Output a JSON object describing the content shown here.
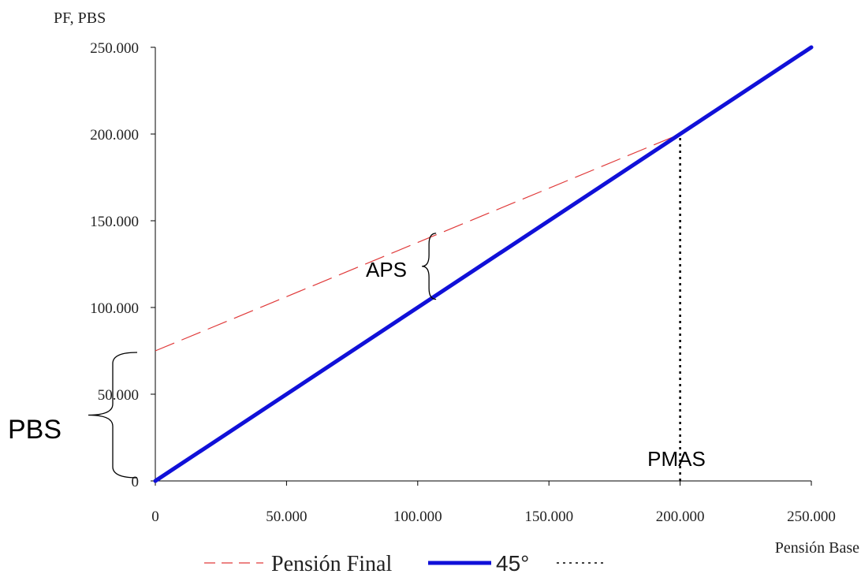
{
  "chart_data": {
    "type": "line",
    "ylabel": "PF, PBS",
    "xlabel": "Pensión Base",
    "xlim": [
      0,
      250000
    ],
    "ylim": [
      0,
      250000
    ],
    "x_ticks": [
      0,
      50000,
      100000,
      150000,
      200000,
      250000
    ],
    "y_ticks": [
      0,
      50000,
      100000,
      150000,
      200000,
      250000
    ],
    "x_tick_labels": [
      "0",
      "50.000",
      "100.000",
      "150.000",
      "200.000",
      "250.000"
    ],
    "y_tick_labels": [
      "0",
      "50.000",
      "100.000",
      "150.000",
      "200.000",
      "250.000"
    ],
    "grid": false,
    "series": [
      {
        "name": "Pensión Final",
        "color": "#e03a3a",
        "style": "dashed",
        "points": [
          [
            0,
            75000
          ],
          [
            200000,
            200000
          ]
        ]
      },
      {
        "name": "45°",
        "color": "#1010d8",
        "style": "solid-thick",
        "points": [
          [
            0,
            0
          ],
          [
            250000,
            250000
          ]
        ]
      },
      {
        "name": "",
        "color": "#000000",
        "style": "dotted",
        "points": [
          [
            200000,
            0
          ],
          [
            200000,
            200000
          ]
        ]
      }
    ],
    "annotations": {
      "pbs": {
        "text": "PBS",
        "brace_from": 0,
        "brace_to": 75000
      },
      "aps": {
        "text": "APS",
        "at_x": 107000
      },
      "pmas": {
        "text": "PMAS",
        "at_x": 200000
      }
    },
    "legend": {
      "placement": "bottom",
      "entries": [
        "Pensión Final",
        "45°",
        ""
      ]
    }
  }
}
